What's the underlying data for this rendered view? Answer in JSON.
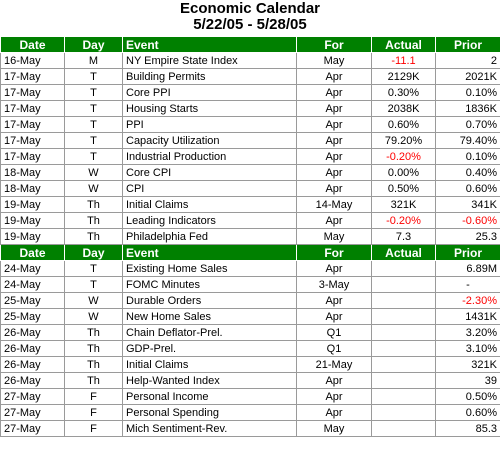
{
  "title": "Economic Calendar",
  "date_range": "5/22/05 - 5/28/05",
  "colors": {
    "header_bg": "#008000",
    "header_text": "#ffffff",
    "negative": "#ff0000"
  },
  "headers": {
    "date": "Date",
    "day": "Day",
    "event": "Event",
    "for": "For",
    "actual": "Actual",
    "prior": "Prior"
  },
  "section1": [
    {
      "date": "16-May",
      "day": "M",
      "event": "NY Empire State Index",
      "for": "May",
      "actual": "-11.1",
      "actual_neg": true,
      "prior": "2",
      "prior_neg": false
    },
    {
      "date": "17-May",
      "day": "T",
      "event": "Building Permits",
      "for": "Apr",
      "actual": "2129K",
      "actual_neg": false,
      "prior": "2021K",
      "prior_neg": false
    },
    {
      "date": "17-May",
      "day": "T",
      "event": "Core PPI",
      "for": "Apr",
      "actual": "0.30%",
      "actual_neg": false,
      "prior": "0.10%",
      "prior_neg": false
    },
    {
      "date": "17-May",
      "day": "T",
      "event": "Housing Starts",
      "for": "Apr",
      "actual": "2038K",
      "actual_neg": false,
      "prior": "1836K",
      "prior_neg": false
    },
    {
      "date": "17-May",
      "day": "T",
      "event": "PPI",
      "for": "Apr",
      "actual": "0.60%",
      "actual_neg": false,
      "prior": "0.70%",
      "prior_neg": false
    },
    {
      "date": "17-May",
      "day": "T",
      "event": "Capacity Utilization",
      "for": "Apr",
      "actual": "79.20%",
      "actual_neg": false,
      "prior": "79.40%",
      "prior_neg": false
    },
    {
      "date": "17-May",
      "day": "T",
      "event": "Industrial Production",
      "for": "Apr",
      "actual": "-0.20%",
      "actual_neg": true,
      "prior": "0.10%",
      "prior_neg": false
    },
    {
      "date": "18-May",
      "day": "W",
      "event": "Core CPI",
      "for": "Apr",
      "actual": "0.00%",
      "actual_neg": false,
      "prior": "0.40%",
      "prior_neg": false
    },
    {
      "date": "18-May",
      "day": "W",
      "event": "CPI",
      "for": "Apr",
      "actual": "0.50%",
      "actual_neg": false,
      "prior": "0.60%",
      "prior_neg": false
    },
    {
      "date": "19-May",
      "day": "Th",
      "event": "Initial Claims",
      "for": "14-May",
      "actual": "321K",
      "actual_neg": false,
      "prior": "341K",
      "prior_neg": false
    },
    {
      "date": "19-May",
      "day": "Th",
      "event": "Leading Indicators",
      "for": "Apr",
      "actual": "-0.20%",
      "actual_neg": true,
      "prior": "-0.60%",
      "prior_neg": true
    },
    {
      "date": "19-May",
      "day": "Th",
      "event": "Philadelphia Fed",
      "for": "May",
      "actual": "7.3",
      "actual_neg": false,
      "prior": "25.3",
      "prior_neg": false
    }
  ],
  "section2": [
    {
      "date": "24-May",
      "day": "T",
      "event": "Existing Home Sales",
      "for": "Apr",
      "actual": "",
      "actual_neg": false,
      "prior": "6.89M",
      "prior_neg": false
    },
    {
      "date": "24-May",
      "day": "T",
      "event": "FOMC Minutes",
      "for": "3-May",
      "actual": "",
      "actual_neg": false,
      "prior": "-",
      "prior_neg": false
    },
    {
      "date": "25-May",
      "day": "W",
      "event": "Durable Orders",
      "for": "Apr",
      "actual": "",
      "actual_neg": false,
      "prior": "-2.30%",
      "prior_neg": true
    },
    {
      "date": "25-May",
      "day": "W",
      "event": "New Home Sales",
      "for": "Apr",
      "actual": "",
      "actual_neg": false,
      "prior": "1431K",
      "prior_neg": false
    },
    {
      "date": "26-May",
      "day": "Th",
      "event": "Chain Deflator-Prel.",
      "for": "Q1",
      "actual": "",
      "actual_neg": false,
      "prior": "3.20%",
      "prior_neg": false
    },
    {
      "date": "26-May",
      "day": "Th",
      "event": "GDP-Prel.",
      "for": "Q1",
      "actual": "",
      "actual_neg": false,
      "prior": "3.10%",
      "prior_neg": false
    },
    {
      "date": "26-May",
      "day": "Th",
      "event": "Initial Claims",
      "for": "21-May",
      "actual": "",
      "actual_neg": false,
      "prior": "321K",
      "prior_neg": false
    },
    {
      "date": "26-May",
      "day": "Th",
      "event": "Help-Wanted Index",
      "for": "Apr",
      "actual": "",
      "actual_neg": false,
      "prior": "39",
      "prior_neg": false
    },
    {
      "date": "27-May",
      "day": "F",
      "event": "Personal Income",
      "for": "Apr",
      "actual": "",
      "actual_neg": false,
      "prior": "0.50%",
      "prior_neg": false
    },
    {
      "date": "27-May",
      "day": "F",
      "event": "Personal Spending",
      "for": "Apr",
      "actual": "",
      "actual_neg": false,
      "prior": "0.60%",
      "prior_neg": false
    },
    {
      "date": "27-May",
      "day": "F",
      "event": "Mich Sentiment-Rev.",
      "for": "May",
      "actual": "",
      "actual_neg": false,
      "prior": "85.3",
      "prior_neg": false
    }
  ]
}
